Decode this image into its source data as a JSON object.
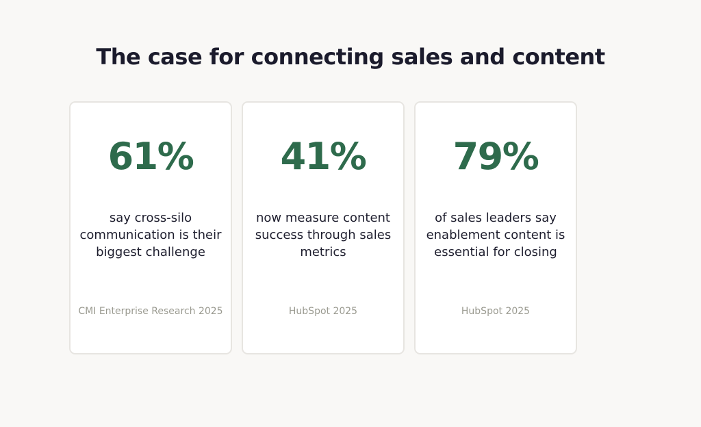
{
  "page": {
    "title": "The case for connecting sales and content"
  },
  "cards": [
    {
      "stat": "61%",
      "description": "say cross-silo communication is their biggest challenge",
      "source": "CMI Enterprise Research 2025"
    },
    {
      "stat": "41%",
      "description": "now measure content success through sales metrics",
      "source": "HubSpot 2025"
    },
    {
      "stat": "79%",
      "description": "of sales leaders say enablement content is essential for closing",
      "source": "HubSpot 2025"
    }
  ],
  "colors": {
    "background": "#f9f8f6",
    "accent": "#2e6b4c",
    "heading": "#1b1b2c",
    "muted": "#9a9a90",
    "card_border": "#e7e5e1"
  }
}
